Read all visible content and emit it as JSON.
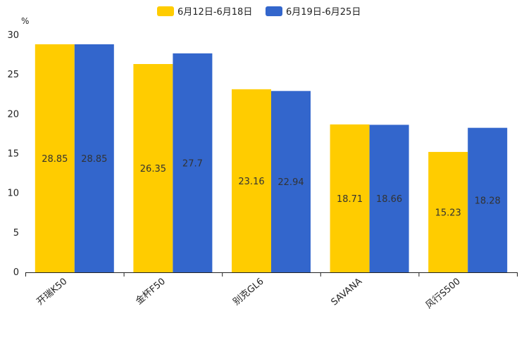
{
  "chart_data": {
    "type": "bar",
    "unit": "%",
    "categories": [
      "开瑞K50",
      "金杯F50",
      "别克GL6",
      "SAVANA",
      "风行S500"
    ],
    "series": [
      {
        "name": "6月12日-6月18日",
        "color": "#FFCC00",
        "values": [
          28.85,
          26.35,
          23.16,
          18.71,
          15.23
        ],
        "labels": [
          "28.85",
          "26.35",
          "23.16",
          "18.71",
          "15.23"
        ]
      },
      {
        "name": "6月19日-6月25日",
        "color": "#3366CC",
        "values": [
          28.85,
          27.7,
          22.94,
          18.66,
          18.28
        ],
        "labels": [
          "28.85",
          "27.7",
          "22.94",
          "18.66",
          "18.28"
        ]
      }
    ],
    "ylim": [
      0,
      30
    ],
    "yticks": [
      "0",
      "5",
      "10",
      "15",
      "20",
      "25",
      "30"
    ],
    "legend_position": "top-center",
    "grid": false,
    "xlabel": "",
    "ylabel": ""
  }
}
